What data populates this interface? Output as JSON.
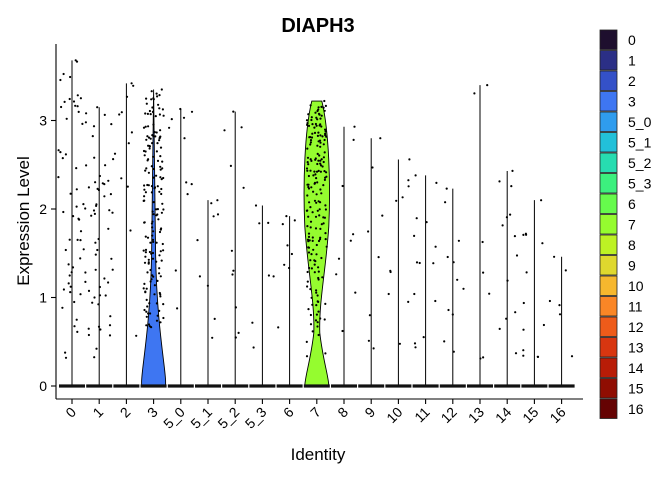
{
  "chart_data": {
    "type": "violin",
    "title": "DIAPH3",
    "xlabel": "Identity",
    "ylabel": "Expression Level",
    "ylim": [
      -0.15,
      3.75
    ],
    "y_ticks": [
      0,
      1,
      2,
      3
    ],
    "categories": [
      "0",
      "1",
      "2",
      "3",
      "5_0",
      "5_1",
      "5_2",
      "5_3",
      "6",
      "7",
      "8",
      "9",
      "10",
      "11",
      "12",
      "13",
      "14",
      "15",
      "16"
    ],
    "max_expression": [
      3.68,
      3.15,
      3.42,
      3.35,
      3.13,
      2.1,
      3.1,
      2.04,
      1.92,
      3.22,
      2.93,
      2.8,
      2.56,
      2.38,
      2.23,
      3.4,
      2.43,
      2.1,
      1.46
    ],
    "violin_fill_by_category": {
      "3": 0.62,
      "7": 1.0
    },
    "colors": [
      "#1e0f2e",
      "#2b2f86",
      "#3451c8",
      "#3e76f2",
      "#2f9cee",
      "#22c0d9",
      "#27dcb0",
      "#3cf07e",
      "#66fb4c",
      "#95fc2f",
      "#bdf224",
      "#dfd82e",
      "#f6b72e",
      "#fa8626",
      "#ee5b1a",
      "#d83610",
      "#b81c07",
      "#8f0d02",
      "#650303"
    ],
    "legend_position": "right",
    "grid": false
  }
}
